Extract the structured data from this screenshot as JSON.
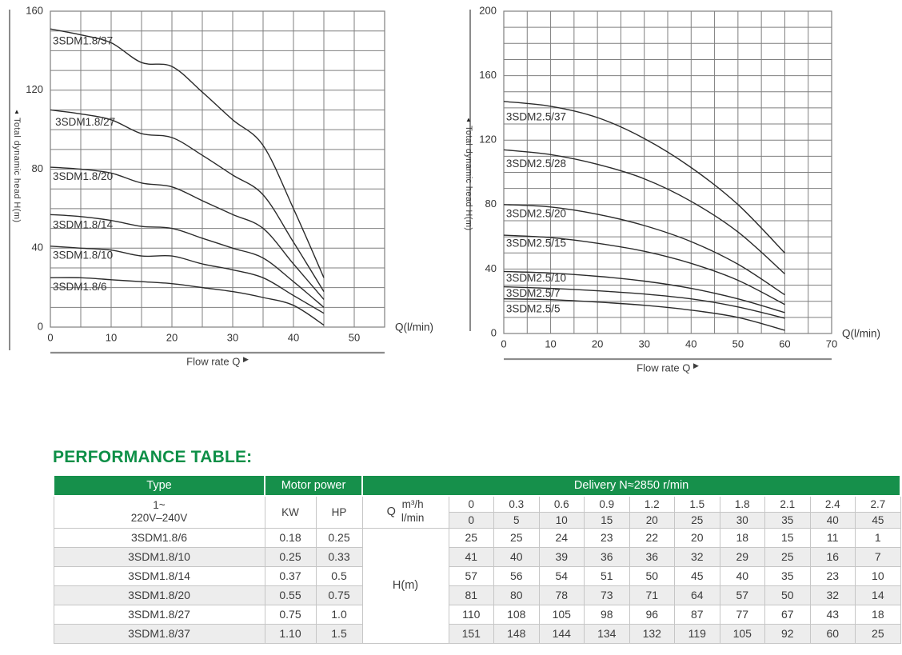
{
  "colors": {
    "green": "#16904b",
    "title_green": "#0d8f47",
    "grid": "#7f7f7f",
    "curve": "#2b2b2b",
    "axis_line": "#8c8c8c",
    "tick_text": "#333333",
    "stripe": "#ededed",
    "table_border": "#c6c6c6"
  },
  "chart_data": [
    {
      "type": "line",
      "title": "",
      "ylabel": "Total dynamic head H(m)",
      "xlabel": "Q(l/min)",
      "x_axis_caption": "Flow rate Q",
      "xlim": [
        0,
        55
      ],
      "ylim": [
        0,
        160
      ],
      "x_grid_step": 5,
      "y_grid_step": 10,
      "xticks": [
        0,
        10,
        20,
        30,
        40,
        50
      ],
      "yticks": [
        0,
        40,
        80,
        120,
        160
      ],
      "legend": "none",
      "x": [
        0,
        5,
        10,
        15,
        20,
        25,
        30,
        35,
        40,
        45
      ],
      "series": [
        {
          "name": "3SDM1.8/37",
          "values": [
            151,
            148,
            144,
            134,
            132,
            119,
            105,
            92,
            60,
            25
          ],
          "label_at": [
            0.4,
            147
          ]
        },
        {
          "name": "3SDM1.8/27",
          "values": [
            110,
            108,
            105,
            98,
            96,
            87,
            77,
            67,
            43,
            18
          ],
          "label_at": [
            0.8,
            106
          ]
        },
        {
          "name": "3SDM1.8/20",
          "values": [
            81,
            80,
            78,
            73,
            71,
            64,
            57,
            50,
            32,
            14
          ],
          "label_at": [
            0.4,
            78.5
          ]
        },
        {
          "name": "3SDM1.8/14",
          "values": [
            57,
            56,
            54,
            51,
            50,
            45,
            40,
            35,
            23,
            10
          ],
          "label_at": [
            0.4,
            54
          ]
        },
        {
          "name": "3SDM1.8/10",
          "values": [
            41,
            40,
            39,
            36,
            36,
            32,
            29,
            25,
            16,
            7
          ],
          "label_at": [
            0.4,
            38.5
          ]
        },
        {
          "name": "3SDM1.8/6",
          "values": [
            25,
            25,
            24,
            23,
            22,
            20,
            18,
            15,
            11,
            1
          ],
          "label_at": [
            0.4,
            22.5
          ]
        }
      ]
    },
    {
      "type": "line",
      "title": "",
      "ylabel": "Total dynamic head H(m)",
      "xlabel": "Q(l/min)",
      "x_axis_caption": "Flow rate Q",
      "xlim": [
        0,
        70
      ],
      "ylim": [
        0,
        200
      ],
      "x_grid_step": 5,
      "y_grid_step": 10,
      "xticks": [
        0,
        10,
        20,
        30,
        40,
        50,
        60,
        70
      ],
      "yticks": [
        0,
        40,
        80,
        120,
        160,
        200
      ],
      "legend": "none",
      "x": [
        0,
        10,
        20,
        30,
        40,
        50,
        60
      ],
      "series": [
        {
          "name": "3SDM2.5/37",
          "values": [
            144,
            141,
            134,
            121,
            103,
            80,
            50
          ],
          "label_at": [
            0.5,
            137
          ]
        },
        {
          "name": "3SDM2.5/28",
          "values": [
            114,
            111,
            105,
            96,
            82,
            63,
            37
          ],
          "label_at": [
            0.5,
            108
          ]
        },
        {
          "name": "3SDM2.5/20",
          "values": [
            80,
            78.5,
            74,
            67,
            57,
            43,
            24
          ],
          "label_at": [
            0.5,
            77
          ]
        },
        {
          "name": "3SDM2.5/15",
          "values": [
            61,
            59.5,
            56,
            51,
            43.5,
            33,
            18
          ],
          "label_at": [
            0.5,
            58.5
          ]
        },
        {
          "name": "3SDM2.5/10",
          "values": [
            38.5,
            37.5,
            35.5,
            32.5,
            28,
            21.5,
            13
          ],
          "label_at": [
            0.5,
            37
          ]
        },
        {
          "name": "3SDM2.5/7",
          "values": [
            29,
            28,
            26.5,
            24.5,
            21.5,
            16.5,
            9.5
          ],
          "label_at": [
            0.5,
            27.5
          ]
        },
        {
          "name": "3SDM2.5/5",
          "values": [
            21.5,
            21,
            19.5,
            17.5,
            14.5,
            10,
            2
          ],
          "label_at": [
            0.5,
            18
          ]
        }
      ]
    }
  ],
  "table": {
    "title": "PERFORMANCE TABLE:",
    "header": {
      "type": "Type",
      "motor_power": "Motor power",
      "delivery": "Delivery  N≈2850 r/min"
    },
    "subheader": {
      "voltage_line1": "1~",
      "voltage_line2": "220V–240V",
      "kw": "KW",
      "hp": "HP",
      "q_label": "Q",
      "q_unit_top": "m³/h",
      "q_unit_bottom": "l/min",
      "head_label": "H(m)",
      "m3h_values": [
        "0",
        "0.3",
        "0.6",
        "0.9",
        "1.2",
        "1.5",
        "1.8",
        "2.1",
        "2.4",
        "2.7"
      ],
      "lmin_values": [
        "0",
        "5",
        "10",
        "15",
        "20",
        "25",
        "30",
        "35",
        "40",
        "45"
      ]
    },
    "rows": [
      {
        "type": "3SDM1.8/6",
        "kw": "0.18",
        "hp": "0.25",
        "h": [
          "25",
          "25",
          "24",
          "23",
          "22",
          "20",
          "18",
          "15",
          "11",
          "1"
        ]
      },
      {
        "type": "3SDM1.8/10",
        "kw": "0.25",
        "hp": "0.33",
        "h": [
          "41",
          "40",
          "39",
          "36",
          "36",
          "32",
          "29",
          "25",
          "16",
          "7"
        ]
      },
      {
        "type": "3SDM1.8/14",
        "kw": "0.37",
        "hp": "0.5",
        "h": [
          "57",
          "56",
          "54",
          "51",
          "50",
          "45",
          "40",
          "35",
          "23",
          "10"
        ]
      },
      {
        "type": "3SDM1.8/20",
        "kw": "0.55",
        "hp": "0.75",
        "h": [
          "81",
          "80",
          "78",
          "73",
          "71",
          "64",
          "57",
          "50",
          "32",
          "14"
        ]
      },
      {
        "type": "3SDM1.8/27",
        "kw": "0.75",
        "hp": "1.0",
        "h": [
          "110",
          "108",
          "105",
          "98",
          "96",
          "87",
          "77",
          "67",
          "43",
          "18"
        ]
      },
      {
        "type": "3SDM1.8/37",
        "kw": "1.10",
        "hp": "1.5",
        "h": [
          "151",
          "148",
          "144",
          "134",
          "132",
          "119",
          "105",
          "92",
          "60",
          "25"
        ]
      }
    ]
  }
}
